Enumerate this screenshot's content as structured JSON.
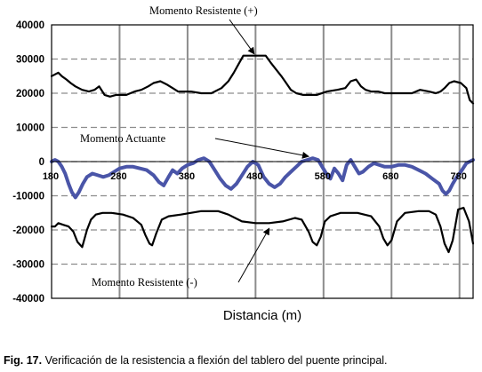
{
  "caption": {
    "label": "Fig. 17.",
    "text": "Verificación de la resistencia a flexión del tablero del puente principal."
  },
  "chart_data": {
    "type": "line",
    "title": "",
    "xlabel": "Distancia (m)",
    "ylabel": "",
    "xlim": [
      180,
      800
    ],
    "ylim": [
      -40000,
      40000
    ],
    "x_ticks": [
      180,
      280,
      380,
      480,
      580,
      680,
      780
    ],
    "x_tick_labels": [
      "180",
      "280",
      "380",
      "480",
      "580",
      "680",
      "780"
    ],
    "y_ticks": [
      40000,
      30000,
      20000,
      10000,
      0,
      -10000,
      -20000,
      -30000,
      -40000
    ],
    "y_tick_labels": [
      "40000",
      "30000",
      "20000",
      "10000",
      "0",
      "-10000",
      "-20000",
      "-30000",
      "-40000"
    ],
    "grid": "dashed horizontal, solid vertical",
    "colors": {
      "resist": "#000000",
      "actuante": "#4a55a8",
      "grid": "#8c8c8c"
    },
    "annotations": [
      {
        "text": "Momento Resistente (+)",
        "series": "Momento Resistente (+)"
      },
      {
        "text": "Momento Actuante",
        "series": "Momento Actuante"
      },
      {
        "text": "Momento Resistente (-)",
        "series": "Momento Resistente (-)"
      }
    ],
    "series": [
      {
        "name": "Momento Resistente (+)",
        "x": [
          180,
          185,
          190,
          195,
          202,
          208,
          215,
          225,
          235,
          243,
          250,
          258,
          266,
          275,
          290,
          302,
          312,
          322,
          330,
          340,
          350,
          358,
          366,
          375,
          385,
          400,
          415,
          430,
          440,
          448,
          455,
          462,
          470,
          478,
          485,
          495,
          502,
          510,
          518,
          525,
          532,
          540,
          550,
          560,
          570,
          585,
          600,
          612,
          620,
          628,
          635,
          642,
          650,
          660,
          670,
          680,
          690,
          700,
          710,
          722,
          735,
          745,
          752,
          758,
          765,
          772,
          782,
          790,
          795,
          800
        ],
        "y": [
          25000,
          25500,
          26000,
          25000,
          24000,
          23000,
          22000,
          21000,
          20500,
          21000,
          22000,
          19500,
          19000,
          19500,
          19500,
          20500,
          21000,
          22000,
          23000,
          23500,
          22500,
          21500,
          20500,
          20500,
          20500,
          20000,
          20000,
          21500,
          23500,
          26000,
          28500,
          31000,
          31000,
          31000,
          31000,
          31000,
          29000,
          27000,
          25000,
          23000,
          21000,
          20000,
          19500,
          19500,
          19500,
          20500,
          21000,
          21500,
          23500,
          24000,
          22000,
          21000,
          20500,
          20500,
          20000,
          20000,
          20000,
          20000,
          20000,
          21000,
          20500,
          20000,
          20500,
          21500,
          23000,
          23500,
          23000,
          21500,
          18000,
          17000
        ]
      },
      {
        "name": "Momento Actuante",
        "x": [
          180,
          185,
          190,
          195,
          200,
          205,
          210,
          215,
          220,
          226,
          232,
          240,
          248,
          256,
          264,
          272,
          280,
          290,
          300,
          310,
          320,
          330,
          338,
          345,
          352,
          358,
          365,
          372,
          380,
          388,
          396,
          404,
          412,
          420,
          428,
          436,
          444,
          452,
          460,
          468,
          476,
          484,
          492,
          500,
          508,
          516,
          524,
          532,
          540,
          548,
          556,
          564,
          572,
          578,
          584,
          590,
          596,
          602,
          608,
          614,
          620,
          626,
          632,
          638,
          646,
          654,
          662,
          670,
          680,
          690,
          700,
          710,
          720,
          730,
          740,
          750,
          755,
          760,
          765,
          770,
          776,
          782,
          790,
          795,
          800
        ],
        "y": [
          0,
          500,
          0,
          -1500,
          -3500,
          -6500,
          -9000,
          -10500,
          -9000,
          -6500,
          -4500,
          -3500,
          -4000,
          -4500,
          -4000,
          -3000,
          -2000,
          -1500,
          -1500,
          -2000,
          -2500,
          -4000,
          -6000,
          -7000,
          -4500,
          -2500,
          -3500,
          -2000,
          -1000,
          -500,
          500,
          1000,
          0,
          -2500,
          -5000,
          -7000,
          -8000,
          -6500,
          -4000,
          -1500,
          0,
          -1000,
          -4500,
          -6500,
          -7500,
          -6500,
          -4500,
          -3000,
          -1500,
          0,
          500,
          1000,
          500,
          -1500,
          -3500,
          -5000,
          -2000,
          -3500,
          -5500,
          -1000,
          500,
          -1500,
          -3500,
          -3000,
          -1500,
          -500,
          -1000,
          -1500,
          -1500,
          -1000,
          -1000,
          -1500,
          -2500,
          -3500,
          -5000,
          -6500,
          -8500,
          -9500,
          -8500,
          -6500,
          -4500,
          -3000,
          -500,
          0,
          500
        ]
      },
      {
        "name": "Momento Resistente (-)",
        "x": [
          180,
          185,
          190,
          197,
          205,
          212,
          218,
          225,
          232,
          238,
          245,
          255,
          268,
          285,
          300,
          312,
          318,
          324,
          328,
          334,
          342,
          352,
          370,
          400,
          425,
          440,
          460,
          480,
          500,
          520,
          538,
          548,
          558,
          564,
          570,
          576,
          582,
          590,
          605,
          630,
          650,
          662,
          668,
          674,
          680,
          688,
          700,
          720,
          735,
          745,
          752,
          758,
          764,
          770,
          778,
          786,
          794,
          800
        ],
        "y": [
          -19000,
          -19000,
          -18000,
          -18500,
          -19000,
          -20500,
          -23500,
          -25000,
          -20000,
          -17000,
          -15500,
          -15000,
          -15000,
          -15500,
          -16500,
          -18500,
          -21500,
          -24000,
          -24500,
          -21000,
          -17000,
          -16000,
          -15500,
          -14500,
          -14500,
          -15500,
          -17500,
          -18000,
          -18000,
          -17500,
          -16500,
          -17000,
          -20500,
          -23500,
          -24500,
          -22000,
          -17500,
          -16000,
          -15000,
          -15000,
          -16000,
          -19000,
          -22500,
          -24500,
          -23000,
          -17500,
          -15000,
          -14500,
          -14500,
          -15500,
          -19000,
          -24000,
          -26500,
          -23000,
          -14000,
          -13500,
          -17500,
          -24000
        ]
      }
    ]
  }
}
